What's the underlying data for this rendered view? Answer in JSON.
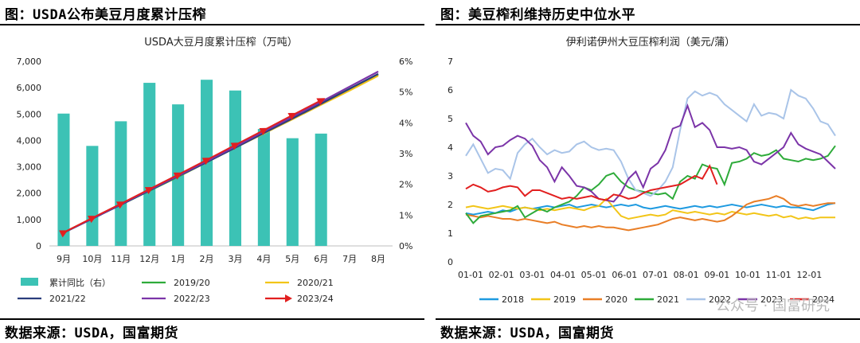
{
  "left_panel": {
    "heading": "图：USDA公布美豆月度累计压榨",
    "source": "数据来源：USDA，国富期货"
  },
  "right_panel": {
    "heading": "图：美豆榨利维持历史中位水平",
    "source": "数据来源：USDA，国富期货",
    "watermark": "公众号 · 国富研究"
  },
  "chart_data": [
    {
      "type": "bar",
      "title": "USDA大豆月度累计压榨（万吨）",
      "categories": [
        "9月",
        "10月",
        "11月",
        "12月",
        "1月",
        "2月",
        "3月",
        "4月",
        "5月",
        "6月",
        "7月",
        "8月"
      ],
      "ylim": [
        0,
        7000
      ],
      "yticks": [
        "0",
        "1,000",
        "2,000",
        "3,000",
        "4,000",
        "5,000",
        "6,000",
        "7,000"
      ],
      "y2lim": [
        0,
        6
      ],
      "y2ticks": [
        "0%",
        "1%",
        "2%",
        "3%",
        "4%",
        "5%",
        "6%"
      ],
      "bar_series": {
        "name": "累计同比（右）",
        "color": "#3cc2b5",
        "axis": "right",
        "values": [
          4.3,
          3.25,
          4.05,
          5.3,
          4.6,
          5.4,
          5.05,
          3.8,
          3.5,
          3.65,
          null,
          null
        ]
      },
      "series": [
        {
          "name": "2019/20",
          "color": "#2eab3a",
          "values": [
            500,
            1040,
            1560,
            2090,
            2620,
            3170,
            3740,
            4300,
            4850,
            5410,
            5960,
            6500
          ]
        },
        {
          "name": "2020/21",
          "color": "#f2c518",
          "values": [
            510,
            1050,
            1570,
            2110,
            2630,
            3170,
            3720,
            4260,
            4800,
            5350,
            5890,
            6450
          ]
        },
        {
          "name": "2021/22",
          "color": "#2a3d7c",
          "values": [
            500,
            1030,
            1560,
            2100,
            2640,
            3170,
            3720,
            4280,
            4830,
            5390,
            5960,
            6520
          ]
        },
        {
          "name": "2022/23",
          "color": "#7b34a8",
          "values": [
            510,
            1040,
            1580,
            2120,
            2660,
            3210,
            3770,
            4340,
            4900,
            5460,
            6040,
            6610
          ]
        },
        {
          "name": "2023/24",
          "color": "#e21f1f",
          "marker": "arrow",
          "values": [
            510,
            1060,
            1600,
            2150,
            2700,
            3260,
            3830,
            4390,
            4960,
            5520,
            null,
            null
          ]
        }
      ]
    },
    {
      "type": "line",
      "title": "伊利诺伊州大豆压榨利润（美元/蒲）",
      "xticks": [
        "01-01",
        "02-01",
        "03-01",
        "04-01",
        "05-01",
        "06-01",
        "07-01",
        "08-01",
        "09-01",
        "10-01",
        "11-01",
        "12-01"
      ],
      "ylim": [
        0,
        7
      ],
      "yticks": [
        "0",
        "1",
        "2",
        "3",
        "4",
        "5",
        "6",
        "7"
      ],
      "series": [
        {
          "name": "2018",
          "color": "#1e9ae0",
          "values": [
            1.7,
            1.65,
            1.7,
            1.75,
            1.7,
            1.8,
            1.75,
            1.85,
            1.9,
            1.85,
            1.9,
            1.95,
            1.9,
            1.95,
            2.0,
            1.9,
            1.95,
            2.0,
            1.95,
            1.9,
            1.95,
            2.0,
            1.95,
            2.0,
            1.9,
            1.85,
            1.9,
            1.95,
            1.9,
            1.85,
            1.9,
            1.95,
            1.9,
            1.95,
            1.9,
            1.95,
            2.0,
            1.95,
            1.9,
            1.95,
            2.0,
            1.95,
            1.9,
            1.95,
            1.9,
            1.9,
            1.85,
            1.8,
            1.9,
            2.0,
            2.05
          ]
        },
        {
          "name": "2019",
          "color": "#f2c518",
          "values": [
            1.9,
            1.95,
            1.9,
            1.85,
            1.9,
            1.95,
            1.9,
            1.85,
            1.9,
            1.85,
            1.8,
            1.85,
            1.8,
            1.85,
            1.9,
            1.85,
            1.8,
            1.9,
            1.95,
            2.2,
            1.9,
            1.6,
            1.5,
            1.55,
            1.6,
            1.65,
            1.6,
            1.65,
            1.8,
            1.75,
            1.7,
            1.75,
            1.7,
            1.65,
            1.7,
            1.65,
            1.75,
            1.7,
            1.65,
            1.7,
            1.65,
            1.6,
            1.65,
            1.55,
            1.6,
            1.5,
            1.55,
            1.5,
            1.55,
            1.55,
            1.55
          ]
        },
        {
          "name": "2020",
          "color": "#e97e26",
          "values": [
            1.65,
            1.6,
            1.55,
            1.6,
            1.55,
            1.5,
            1.5,
            1.45,
            1.5,
            1.45,
            1.4,
            1.35,
            1.4,
            1.3,
            1.25,
            1.2,
            1.25,
            1.2,
            1.25,
            1.2,
            1.2,
            1.15,
            1.1,
            1.15,
            1.2,
            1.25,
            1.3,
            1.4,
            1.5,
            1.55,
            1.5,
            1.45,
            1.5,
            1.45,
            1.4,
            1.45,
            1.6,
            1.8,
            2.0,
            2.1,
            2.15,
            2.2,
            2.3,
            2.2,
            2.0,
            1.95,
            2.0,
            1.95,
            2.0,
            2.05,
            2.05
          ]
        },
        {
          "name": "2021",
          "color": "#2eab3a",
          "values": [
            1.7,
            1.35,
            1.6,
            1.65,
            1.7,
            1.75,
            1.8,
            1.95,
            1.55,
            1.7,
            1.85,
            1.75,
            1.9,
            2.0,
            2.1,
            2.3,
            2.6,
            2.5,
            2.7,
            3.0,
            3.1,
            2.8,
            2.6,
            2.5,
            2.45,
            2.4,
            2.35,
            2.4,
            2.2,
            2.8,
            3.0,
            2.9,
            3.4,
            3.3,
            3.25,
            2.7,
            3.45,
            3.5,
            3.6,
            3.8,
            3.7,
            3.75,
            3.9,
            3.6,
            3.55,
            3.5,
            3.6,
            3.55,
            3.6,
            3.7,
            4.05
          ]
        },
        {
          "name": "2022",
          "color": "#a9c4e8",
          "values": [
            3.7,
            4.1,
            3.6,
            3.1,
            3.25,
            3.2,
            2.9,
            3.8,
            4.1,
            4.3,
            4.0,
            3.75,
            3.9,
            3.8,
            3.85,
            4.1,
            4.2,
            4.0,
            3.9,
            3.95,
            3.9,
            3.5,
            2.9,
            2.5,
            2.4,
            2.3,
            2.5,
            2.8,
            3.3,
            4.6,
            5.7,
            5.95,
            5.8,
            5.9,
            5.8,
            5.5,
            5.3,
            5.1,
            4.9,
            5.5,
            5.1,
            5.2,
            5.15,
            5.0,
            6.0,
            5.8,
            5.7,
            5.35,
            4.9,
            4.8,
            4.4
          ]
        },
        {
          "name": "2023",
          "color": "#7b34a8",
          "values": [
            4.85,
            4.4,
            4.2,
            3.75,
            4.0,
            4.05,
            4.25,
            4.4,
            4.3,
            4.05,
            3.55,
            3.3,
            2.8,
            3.3,
            3.0,
            2.65,
            2.6,
            2.45,
            2.2,
            2.15,
            2.1,
            2.4,
            2.9,
            3.15,
            2.6,
            3.25,
            3.45,
            3.9,
            4.65,
            4.75,
            5.45,
            4.7,
            4.85,
            4.6,
            4.0,
            4.0,
            3.95,
            4.0,
            3.9,
            3.5,
            3.4,
            3.6,
            3.8,
            4.0,
            4.5,
            4.1,
            3.95,
            3.85,
            3.75,
            3.5,
            3.25
          ]
        },
        {
          "name": "2024",
          "color": "#e21f1f",
          "values": [
            2.55,
            2.7,
            2.6,
            2.45,
            2.5,
            2.6,
            2.65,
            2.6,
            2.3,
            2.5,
            2.5,
            2.4,
            2.3,
            2.2,
            2.25,
            2.2,
            2.25,
            2.3,
            2.2,
            2.15,
            2.35,
            2.3,
            2.2,
            2.25,
            2.4,
            2.5,
            2.55,
            2.6,
            2.65,
            2.7,
            2.85,
            3.0,
            2.9,
            3.35,
            2.7,
            null,
            null,
            null,
            null,
            null,
            null,
            null,
            null,
            null,
            null,
            null,
            null,
            null,
            null,
            null,
            null
          ]
        }
      ]
    }
  ]
}
